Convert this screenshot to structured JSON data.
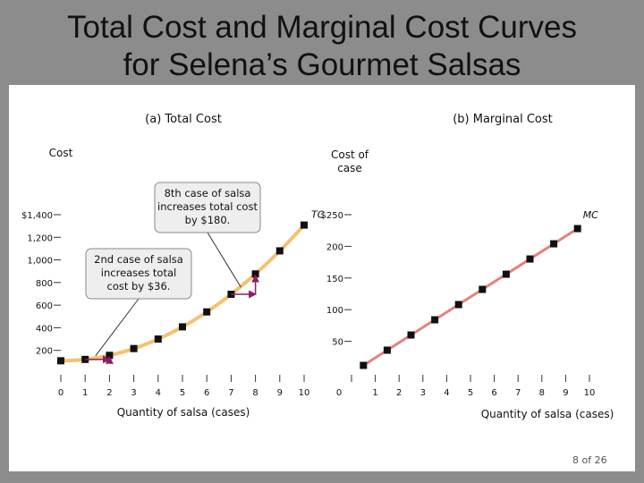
{
  "slide": {
    "title_line1": "Total Cost and Marginal Cost Curves",
    "title_line2": "for Selena’s Gourmet Salsas",
    "page": "8 of 26"
  },
  "colors": {
    "tc_curve": "#f5c070",
    "mc_line": "#e8807a",
    "annotation": "#8a2060",
    "point": "#111111"
  },
  "chart_data": [
    {
      "type": "line",
      "title": "(a) Total Cost",
      "ylabel": "Cost",
      "xlabel": "Quantity of salsa (cases)",
      "series_label": "TC",
      "x": [
        0,
        1,
        2,
        3,
        4,
        5,
        6,
        7,
        8,
        9,
        10
      ],
      "values": [
        108,
        120,
        156,
        216,
        300,
        408,
        540,
        696,
        876,
        1080,
        1308
      ],
      "xlim": [
        0,
        10
      ],
      "ylim": [
        0,
        1400
      ],
      "xticks": [
        "0",
        "1",
        "2",
        "3",
        "4",
        "5",
        "6",
        "7",
        "8",
        "9",
        "10"
      ],
      "yticks": [
        {
          "value": 200,
          "label": "200"
        },
        {
          "value": 400,
          "label": "400"
        },
        {
          "value": 600,
          "label": "600"
        },
        {
          "value": 800,
          "label": "800"
        },
        {
          "value": 1000,
          "label": "1,000"
        },
        {
          "value": 1200,
          "label": "1,200"
        },
        {
          "value": 1400,
          "label": "$1,400"
        }
      ],
      "annotations": [
        {
          "text_lines": [
            "2nd case of salsa",
            "increases total",
            "cost by $36."
          ],
          "from_x": 1,
          "to_x": 2
        },
        {
          "text_lines": [
            "8th case of salsa",
            "increases total cost",
            "by $180."
          ],
          "from_x": 7,
          "to_x": 8
        }
      ]
    },
    {
      "type": "line",
      "title": "(b) Marginal Cost",
      "ylabel_lines": [
        "Cost of",
        "case"
      ],
      "xlabel": "Quantity of salsa (cases)",
      "series_label": "MC",
      "x": [
        0.5,
        1.5,
        2.5,
        3.5,
        4.5,
        5.5,
        6.5,
        7.5,
        8.5,
        9.5
      ],
      "values": [
        12,
        36,
        60,
        84,
        108,
        132,
        156,
        180,
        204,
        228
      ],
      "xlim": [
        0,
        10
      ],
      "ylim": [
        0,
        250
      ],
      "xticks": [
        "0",
        "1",
        "2",
        "3",
        "4",
        "5",
        "6",
        "7",
        "8",
        "9",
        "10"
      ],
      "yticks": [
        {
          "value": 50,
          "label": "50"
        },
        {
          "value": 100,
          "label": "100"
        },
        {
          "value": 150,
          "label": "150"
        },
        {
          "value": 200,
          "label": "200"
        },
        {
          "value": 250,
          "label": "$250"
        }
      ]
    }
  ]
}
